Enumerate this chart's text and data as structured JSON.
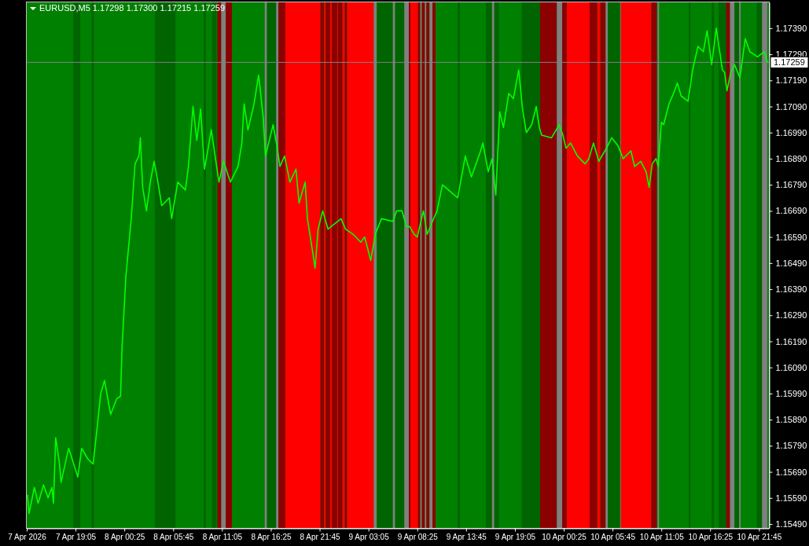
{
  "chart_data": {
    "type": "line",
    "title": "EURUSD,M5 1.17298 1.17300 1.17215 1.17259",
    "x": [
      "2026-04-07T13:50",
      "2026-04-07T14:00",
      "2026-04-07T14:35",
      "2026-04-07T15:00",
      "2026-04-07T15:35",
      "2026-04-07T16:05",
      "2026-04-07T16:30",
      "2026-04-07T16:40",
      "2026-04-07T16:55",
      "2026-04-07T17:20",
      "2026-04-07T17:30",
      "2026-04-07T18:20",
      "2026-04-07T19:20",
      "2026-04-07T19:45",
      "2026-04-07T20:25",
      "2026-04-07T21:00",
      "2026-04-07T21:25",
      "2026-04-07T21:50",
      "2026-04-07T22:15",
      "2026-04-07T22:55",
      "2026-04-07T23:35",
      "2026-04-08T00:00",
      "2026-04-08T00:10",
      "2026-04-08T00:35",
      "2026-04-08T01:10",
      "2026-04-08T01:35",
      "2026-04-08T02:00",
      "2026-04-08T02:10",
      "2026-04-08T02:25",
      "2026-04-08T02:50",
      "2026-04-08T03:15",
      "2026-04-08T03:40",
      "2026-04-08T04:05",
      "2026-04-08T04:30",
      "2026-04-08T05:20",
      "2026-04-08T05:35",
      "2026-04-08T06:15",
      "2026-04-08T07:05",
      "2026-04-08T07:25",
      "2026-04-08T07:55",
      "2026-04-08T08:20",
      "2026-04-08T08:45",
      "2026-04-08T09:10",
      "2026-04-08T09:55",
      "2026-04-08T10:25",
      "2026-04-08T10:45",
      "2026-04-08T11:15",
      "2026-04-08T12:00",
      "2026-04-08T12:50",
      "2026-04-08T13:15",
      "2026-04-08T13:30",
      "2026-04-08T13:55",
      "2026-04-08T14:35",
      "2026-04-08T15:05",
      "2026-04-08T15:35",
      "2026-04-08T15:50",
      "2026-04-08T16:40",
      "2026-04-08T17:05",
      "2026-04-08T17:25",
      "2026-04-08T17:55",
      "2026-04-08T18:30",
      "2026-04-08T19:10",
      "2026-04-08T19:30",
      "2026-04-08T20:10",
      "2026-04-08T20:25",
      "2026-04-08T21:00",
      "2026-04-08T21:15",
      "2026-04-08T21:35",
      "2026-04-08T22:05",
      "2026-04-08T22:40",
      "2026-04-09T00:05",
      "2026-04-09T00:35",
      "2026-04-09T01:25",
      "2026-04-09T02:15",
      "2026-04-09T02:40",
      "2026-04-09T03:20",
      "2026-04-09T03:50",
      "2026-04-09T04:30",
      "2026-04-09T05:45",
      "2026-04-09T06:10",
      "2026-04-09T06:45",
      "2026-04-09T07:15",
      "2026-04-09T07:35",
      "2026-04-09T08:05",
      "2026-04-09T08:25",
      "2026-04-09T09:05",
      "2026-04-09T09:30",
      "2026-04-09T10:05",
      "2026-04-09T10:35",
      "2026-04-09T11:10",
      "2026-04-09T11:50",
      "2026-04-09T12:50",
      "2026-04-09T13:40",
      "2026-04-09T14:20",
      "2026-04-09T15:20",
      "2026-04-09T15:35",
      "2026-04-09T16:10",
      "2026-04-09T16:35",
      "2026-04-09T17:00",
      "2026-04-09T17:25",
      "2026-04-09T17:50",
      "2026-04-09T18:25",
      "2026-04-09T18:55",
      "2026-04-09T19:30",
      "2026-04-09T19:55",
      "2026-04-09T20:20",
      "2026-04-09T20:55",
      "2026-04-09T21:25",
      "2026-04-09T21:45",
      "2026-04-09T22:00",
      "2026-04-09T23:05",
      "2026-04-09T23:55",
      "2026-04-10T00:20",
      "2026-04-10T00:40",
      "2026-04-10T01:10",
      "2026-04-10T01:55",
      "2026-04-10T02:45",
      "2026-04-10T03:10",
      "2026-04-10T03:40",
      "2026-04-10T04:15",
      "2026-04-10T04:55",
      "2026-04-10T05:40",
      "2026-04-10T06:20",
      "2026-04-10T06:55",
      "2026-04-10T07:45",
      "2026-04-10T08:10",
      "2026-04-10T08:50",
      "2026-04-10T09:25",
      "2026-04-10T09:45",
      "2026-04-10T10:05",
      "2026-04-10T10:30",
      "2026-04-10T10:45",
      "2026-04-10T11:05",
      "2026-04-10T11:20",
      "2026-04-10T11:55",
      "2026-04-10T12:25",
      "2026-04-10T12:50",
      "2026-04-10T13:15",
      "2026-04-10T14:00",
      "2026-04-10T14:30",
      "2026-04-10T15:05",
      "2026-04-10T15:40",
      "2026-04-10T16:05",
      "2026-04-10T16:35",
      "2026-04-10T17:05",
      "2026-04-10T17:45",
      "2026-04-10T18:00",
      "2026-04-10T18:15",
      "2026-04-10T18:40",
      "2026-04-10T19:05",
      "2026-04-10T19:40",
      "2026-04-10T20:15",
      "2026-04-10T20:45",
      "2026-04-10T21:35",
      "2026-04-10T22:20",
      "2026-04-10T22:40"
    ],
    "series": [
      {
        "color": "#00ff00",
        "values": [
          1.156,
          1.1553,
          1.1563,
          1.1557,
          1.1564,
          1.1559,
          1.1563,
          1.1557,
          1.1582,
          1.1572,
          1.1565,
          1.1578,
          1.1567,
          1.1578,
          1.1574,
          1.1572,
          1.1585,
          1.1599,
          1.1604,
          1.1591,
          1.1597,
          1.1598,
          1.1617,
          1.1644,
          1.1666,
          1.1687,
          1.169,
          1.1697,
          1.1678,
          1.1669,
          1.168,
          1.1688,
          1.168,
          1.1671,
          1.1674,
          1.1666,
          1.168,
          1.1677,
          1.1686,
          1.1709,
          1.1696,
          1.1708,
          1.1685,
          1.17,
          1.1688,
          1.168,
          1.1688,
          1.168,
          1.1686,
          1.1695,
          1.171,
          1.17,
          1.171,
          1.1721,
          1.1705,
          1.169,
          1.1702,
          1.1694,
          1.1686,
          1.169,
          1.168,
          1.1685,
          1.1672,
          1.168,
          1.1666,
          1.1653,
          1.1647,
          1.1662,
          1.1669,
          1.1662,
          1.1666,
          1.1662,
          1.166,
          1.1657,
          1.1659,
          1.165,
          1.166,
          1.1666,
          1.1665,
          1.1669,
          1.1669,
          1.1663,
          1.1663,
          1.166,
          1.1659,
          1.1669,
          1.166,
          1.1665,
          1.1669,
          1.1679,
          1.1677,
          1.1674,
          1.169,
          1.1682,
          1.1692,
          1.1695,
          1.1684,
          1.1689,
          1.1675,
          1.1707,
          1.1701,
          1.1714,
          1.1712,
          1.1723,
          1.1708,
          1.1699,
          1.1702,
          1.1709,
          1.1701,
          1.1698,
          1.1697,
          1.1702,
          1.1698,
          1.1693,
          1.1695,
          1.169,
          1.1687,
          1.1689,
          1.1695,
          1.1688,
          1.1692,
          1.1697,
          1.1694,
          1.1689,
          1.1692,
          1.1686,
          1.1688,
          1.1684,
          1.1678,
          1.1687,
          1.1689,
          1.1686,
          1.1703,
          1.1702,
          1.171,
          1.1714,
          1.1718,
          1.1713,
          1.1711,
          1.1723,
          1.1732,
          1.173,
          1.1738,
          1.1725,
          1.1739,
          1.1723,
          1.1722,
          1.1715,
          1.1722,
          1.1725,
          1.172,
          1.1735,
          1.173,
          1.1728,
          1.173,
          1.1726
        ]
      }
    ],
    "xlim": [
      "2026-04-07T13:45",
      "2026-04-10T22:50"
    ],
    "xticks": [
      {
        "value": "2026-04-07T13:45",
        "label": "7 Apr 2026"
      },
      {
        "value": "2026-04-07T19:05",
        "label": "7 Apr 19:05"
      },
      {
        "value": "2026-04-08T00:25",
        "label": "8 Apr 00:25"
      },
      {
        "value": "2026-04-08T05:45",
        "label": "8 Apr 05:45"
      },
      {
        "value": "2026-04-08T11:05",
        "label": "8 Apr 11:05"
      },
      {
        "value": "2026-04-08T16:25",
        "label": "8 Apr 16:25"
      },
      {
        "value": "2026-04-08T21:45",
        "label": "8 Apr 21:45"
      },
      {
        "value": "2026-04-09T03:05",
        "label": "9 Apr 03:05"
      },
      {
        "value": "2026-04-09T08:25",
        "label": "9 Apr 08:25"
      },
      {
        "value": "2026-04-09T13:45",
        "label": "9 Apr 13:45"
      },
      {
        "value": "2026-04-09T19:05",
        "label": "9 Apr 19:05"
      },
      {
        "value": "2026-04-10T00:25",
        "label": "10 Apr 00:25"
      },
      {
        "value": "2026-04-10T05:45",
        "label": "10 Apr 05:45"
      },
      {
        "value": "2026-04-10T11:05",
        "label": "10 Apr 11:05"
      },
      {
        "value": "2026-04-10T16:25",
        "label": "10 Apr 16:25"
      },
      {
        "value": "2026-04-10T21:45",
        "label": "10 Apr 21:45"
      }
    ],
    "ylim": [
      1.15475,
      1.17489
    ],
    "yticks": [
      {
        "value": 1.1549,
        "label": "1.15490"
      },
      {
        "value": 1.1559,
        "label": "1.15590"
      },
      {
        "value": 1.1569,
        "label": "1.15690"
      },
      {
        "value": 1.1579,
        "label": "1.15790"
      },
      {
        "value": 1.1589,
        "label": "1.15890"
      },
      {
        "value": 1.1599,
        "label": "1.15990"
      },
      {
        "value": 1.1609,
        "label": "1.16090"
      },
      {
        "value": 1.1619,
        "label": "1.16190"
      },
      {
        "value": 1.1629,
        "label": "1.16290"
      },
      {
        "value": 1.1639,
        "label": "1.16390"
      },
      {
        "value": 1.1649,
        "label": "1.16490"
      },
      {
        "value": 1.1659,
        "label": "1.16590"
      },
      {
        "value": 1.1669,
        "label": "1.16690"
      },
      {
        "value": 1.1679,
        "label": "1.16790"
      },
      {
        "value": 1.1689,
        "label": "1.16890"
      },
      {
        "value": 1.1699,
        "label": "1.16990"
      },
      {
        "value": 1.1709,
        "label": "1.17090"
      },
      {
        "value": 1.1719,
        "label": "1.17190"
      },
      {
        "value": 1.1729,
        "label": "1.17290"
      },
      {
        "value": 1.1739,
        "label": "1.17390"
      }
    ],
    "ref_lines": [
      {
        "axis": "y",
        "value": 1.17259,
        "label": "1.17259",
        "color": "#808080"
      }
    ],
    "bands": [
      {
        "axis": "x",
        "from": "2026-04-07T18:50",
        "to": "2026-04-07T19:35",
        "color": "#006400"
      },
      {
        "axis": "x",
        "from": "2026-04-07T20:50",
        "to": "2026-04-07T21:05",
        "color": "#006400"
      },
      {
        "axis": "x",
        "from": "2026-04-08T03:45",
        "to": "2026-04-08T06:00",
        "color": "#006400"
      },
      {
        "axis": "x",
        "from": "2026-04-08T09:05",
        "to": "2026-04-08T09:20",
        "color": "#006400"
      },
      {
        "axis": "x",
        "from": "2026-04-08T10:00",
        "to": "2026-04-08T10:30",
        "color": "#006400"
      },
      {
        "axis": "x",
        "from": "2026-04-08T10:35",
        "to": "2026-04-08T11:00",
        "color": "#8b0000"
      },
      {
        "axis": "x",
        "from": "2026-04-08T11:00",
        "to": "2026-04-08T11:30",
        "color": "#808080"
      },
      {
        "axis": "x",
        "from": "2026-04-08T11:30",
        "to": "2026-04-08T12:10",
        "color": "#8b0000"
      },
      {
        "axis": "x",
        "from": "2026-04-08T15:45",
        "to": "2026-04-08T16:00",
        "color": "#808080"
      },
      {
        "axis": "x",
        "from": "2026-04-08T16:00",
        "to": "2026-04-08T17:00",
        "color": "#006400"
      },
      {
        "axis": "x",
        "from": "2026-04-08T17:00",
        "to": "2026-04-08T17:15",
        "color": "#808080"
      },
      {
        "axis": "x",
        "from": "2026-04-08T17:15",
        "to": "2026-04-08T18:00",
        "color": "#8b0000"
      },
      {
        "axis": "x",
        "from": "2026-04-08T18:00",
        "to": "2026-04-08T21:50",
        "color": "#ff0000"
      },
      {
        "axis": "x",
        "from": "2026-04-08T21:50",
        "to": "2026-04-08T22:15",
        "color": "#8b0000"
      },
      {
        "axis": "x",
        "from": "2026-04-08T22:15",
        "to": "2026-04-08T22:25",
        "color": "#ff0000"
      },
      {
        "axis": "x",
        "from": "2026-04-08T22:25",
        "to": "2026-04-08T22:55",
        "color": "#8b0000"
      },
      {
        "axis": "x",
        "from": "2026-04-08T22:55",
        "to": "2026-04-08T23:05",
        "color": "#ff0000"
      },
      {
        "axis": "x",
        "from": "2026-04-08T23:05",
        "to": "2026-04-08T23:40",
        "color": "#8b0000"
      },
      {
        "axis": "x",
        "from": "2026-04-08T23:40",
        "to": "2026-04-08T23:45",
        "color": "#ff0000"
      },
      {
        "axis": "x",
        "from": "2026-04-08T23:45",
        "to": "2026-04-09T00:15",
        "color": "#8b0000"
      },
      {
        "axis": "x",
        "from": "2026-04-09T00:15",
        "to": "2026-04-09T00:30",
        "color": "#ff0000"
      },
      {
        "axis": "x",
        "from": "2026-04-09T00:30",
        "to": "2026-04-09T00:45",
        "color": "#8b0000"
      },
      {
        "axis": "x",
        "from": "2026-04-09T00:45",
        "to": "2026-04-09T03:40",
        "color": "#ff0000"
      },
      {
        "axis": "x",
        "from": "2026-04-09T03:40",
        "to": "2026-04-09T04:00",
        "color": "#808080"
      },
      {
        "axis": "x",
        "from": "2026-04-09T04:00",
        "to": "2026-04-09T05:45",
        "color": "#006400"
      },
      {
        "axis": "x",
        "from": "2026-04-09T05:45",
        "to": "2026-04-09T06:00",
        "color": "#808080"
      },
      {
        "axis": "x",
        "from": "2026-04-09T06:00",
        "to": "2026-04-09T07:00",
        "color": "#006400"
      },
      {
        "axis": "x",
        "from": "2026-04-09T07:00",
        "to": "2026-04-09T07:30",
        "color": "#808080"
      },
      {
        "axis": "x",
        "from": "2026-04-09T07:30",
        "to": "2026-04-09T07:40",
        "color": "#8b0000"
      },
      {
        "axis": "x",
        "from": "2026-04-09T07:40",
        "to": "2026-04-09T08:30",
        "color": "#ff0000"
      },
      {
        "axis": "x",
        "from": "2026-04-09T08:30",
        "to": "2026-04-09T08:45",
        "color": "#8b0000"
      },
      {
        "axis": "x",
        "from": "2026-04-09T08:45",
        "to": "2026-04-09T08:55",
        "color": "#808080"
      },
      {
        "axis": "x",
        "from": "2026-04-09T08:55",
        "to": "2026-04-09T09:15",
        "color": "#8b0000"
      },
      {
        "axis": "x",
        "from": "2026-04-09T09:15",
        "to": "2026-04-09T09:25",
        "color": "#808080"
      },
      {
        "axis": "x",
        "from": "2026-04-09T09:25",
        "to": "2026-04-09T09:45",
        "color": "#8b0000"
      },
      {
        "axis": "x",
        "from": "2026-04-09T09:45",
        "to": "2026-04-09T10:05",
        "color": "#808080"
      },
      {
        "axis": "x",
        "from": "2026-04-09T10:05",
        "to": "2026-04-09T10:25",
        "color": "#8b0000"
      },
      {
        "axis": "x",
        "from": "2026-04-09T12:50",
        "to": "2026-04-09T13:05",
        "color": "#006400"
      },
      {
        "axis": "x",
        "from": "2026-04-09T15:55",
        "to": "2026-04-09T16:35",
        "color": "#006400"
      },
      {
        "axis": "x",
        "from": "2026-04-09T16:35",
        "to": "2026-04-09T16:50",
        "color": "#808080"
      },
      {
        "axis": "x",
        "from": "2026-04-09T16:50",
        "to": "2026-04-09T17:20",
        "color": "#006400"
      },
      {
        "axis": "x",
        "from": "2026-04-09T19:50",
        "to": "2026-04-09T21:50",
        "color": "#006400"
      },
      {
        "axis": "x",
        "from": "2026-04-09T21:50",
        "to": "2026-04-09T23:40",
        "color": "#8b0000"
      },
      {
        "axis": "x",
        "from": "2026-04-09T23:40",
        "to": "2026-04-10T00:15",
        "color": "#808080"
      },
      {
        "axis": "x",
        "from": "2026-04-10T00:15",
        "to": "2026-04-10T00:45",
        "color": "#8b0000"
      },
      {
        "axis": "x",
        "from": "2026-04-10T00:45",
        "to": "2026-04-10T03:15",
        "color": "#ff0000"
      },
      {
        "axis": "x",
        "from": "2026-04-10T03:15",
        "to": "2026-04-10T04:05",
        "color": "#8b0000"
      },
      {
        "axis": "x",
        "from": "2026-04-10T04:05",
        "to": "2026-04-10T04:25",
        "color": "#ff0000"
      },
      {
        "axis": "x",
        "from": "2026-04-10T04:25",
        "to": "2026-04-10T05:00",
        "color": "#8b0000"
      },
      {
        "axis": "x",
        "from": "2026-04-10T05:00",
        "to": "2026-04-10T05:15",
        "color": "#808080"
      },
      {
        "axis": "x",
        "from": "2026-04-10T05:15",
        "to": "2026-04-10T06:35",
        "color": "#006400"
      },
      {
        "axis": "x",
        "from": "2026-04-10T06:35",
        "to": "2026-04-10T06:40",
        "color": "#808080"
      },
      {
        "axis": "x",
        "from": "2026-04-10T06:40",
        "to": "2026-04-10T10:00",
        "color": "#ff0000"
      },
      {
        "axis": "x",
        "from": "2026-04-10T10:00",
        "to": "2026-04-10T10:35",
        "color": "#8b0000"
      },
      {
        "axis": "x",
        "from": "2026-04-10T10:40",
        "to": "2026-04-10T10:50",
        "color": "#808080"
      },
      {
        "axis": "x",
        "from": "2026-04-10T14:05",
        "to": "2026-04-10T14:15",
        "color": "#006400"
      },
      {
        "axis": "x",
        "from": "2026-04-10T16:35",
        "to": "2026-04-10T16:50",
        "color": "#006400"
      },
      {
        "axis": "x",
        "from": "2026-04-10T17:20",
        "to": "2026-04-10T18:10",
        "color": "#006400"
      },
      {
        "axis": "x",
        "from": "2026-04-10T18:10",
        "to": "2026-04-10T18:35",
        "color": "#8b0000"
      },
      {
        "axis": "x",
        "from": "2026-04-10T18:35",
        "to": "2026-04-10T19:05",
        "color": "#808080"
      },
      {
        "axis": "x",
        "from": "2026-04-10T19:05",
        "to": "2026-04-10T19:35",
        "color": "#006400"
      },
      {
        "axis": "x",
        "from": "2026-04-10T19:35",
        "to": "2026-04-10T19:45",
        "color": "#808080"
      },
      {
        "axis": "x",
        "from": "2026-04-10T21:30",
        "to": "2026-04-10T22:05",
        "color": "#006400"
      },
      {
        "axis": "x",
        "from": "2026-04-10T22:05",
        "to": "2026-04-10T22:40",
        "color": "#808080"
      }
    ]
  }
}
